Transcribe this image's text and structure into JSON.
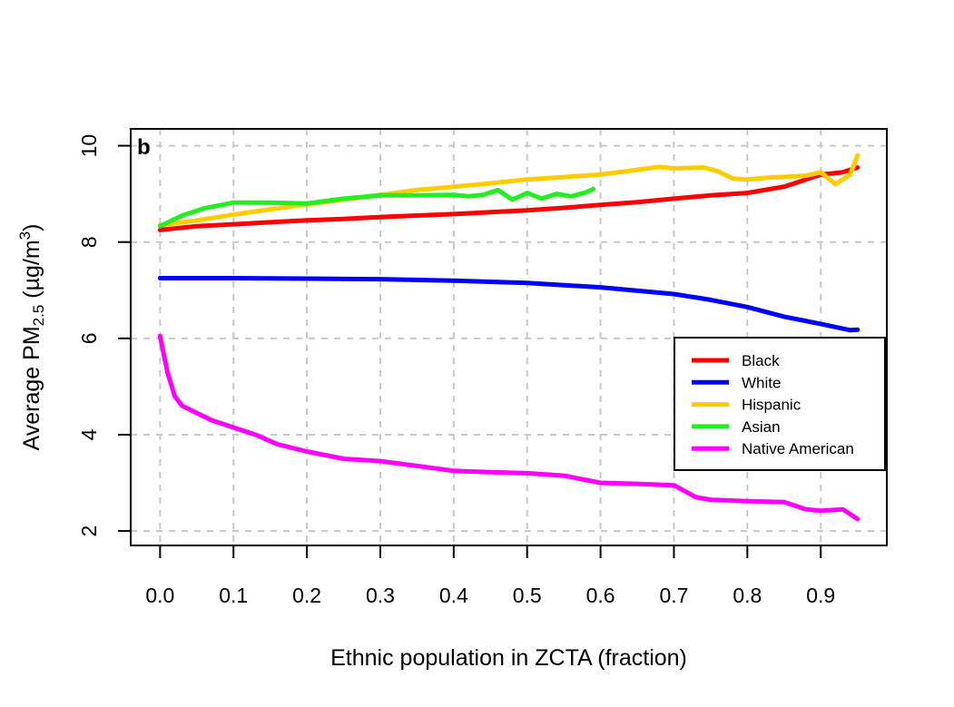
{
  "chart_data": {
    "type": "line",
    "panel_label": "b",
    "xlabel": "Ethnic population in ZCTA (fraction)",
    "ylabel": {
      "prefix": "Average PM",
      "subscript": "2.5",
      "unit_pre": " (µg/m",
      "superscript": "3",
      "unit_post": ")"
    },
    "xlim": [
      -0.04,
      0.99
    ],
    "ylim": [
      1.7,
      10.35
    ],
    "xticks": [
      0.0,
      0.1,
      0.2,
      0.3,
      0.4,
      0.5,
      0.6,
      0.7,
      0.8,
      0.9
    ],
    "xtick_labels": [
      "0.0",
      "0.1",
      "0.2",
      "0.3",
      "0.4",
      "0.5",
      "0.6",
      "0.7",
      "0.8",
      "0.9"
    ],
    "yticks": [
      2,
      4,
      6,
      8,
      10
    ],
    "ytick_labels": [
      "2",
      "4",
      "6",
      "8",
      "10"
    ],
    "grid": true,
    "legend_position": "right",
    "series": [
      {
        "name": "Black",
        "color": "#ff0000",
        "x": [
          0.0,
          0.05,
          0.1,
          0.15,
          0.2,
          0.25,
          0.3,
          0.35,
          0.4,
          0.45,
          0.5,
          0.55,
          0.6,
          0.65,
          0.7,
          0.75,
          0.8,
          0.85,
          0.9,
          0.93,
          0.95
        ],
        "y": [
          8.25,
          8.33,
          8.37,
          8.41,
          8.45,
          8.48,
          8.52,
          8.55,
          8.58,
          8.62,
          8.66,
          8.71,
          8.77,
          8.83,
          8.9,
          8.97,
          9.02,
          9.15,
          9.4,
          9.45,
          9.55
        ]
      },
      {
        "name": "White",
        "color": "#0000ff",
        "x": [
          0.0,
          0.1,
          0.2,
          0.3,
          0.4,
          0.5,
          0.6,
          0.7,
          0.75,
          0.8,
          0.85,
          0.9,
          0.94,
          0.95
        ],
        "y": [
          7.25,
          7.25,
          7.24,
          7.23,
          7.2,
          7.15,
          7.06,
          6.92,
          6.8,
          6.65,
          6.45,
          6.3,
          6.17,
          6.18
        ]
      },
      {
        "name": "Hispanic",
        "color": "#ffcc00",
        "x": [
          0.0,
          0.05,
          0.1,
          0.15,
          0.2,
          0.25,
          0.3,
          0.35,
          0.4,
          0.45,
          0.5,
          0.55,
          0.6,
          0.65,
          0.68,
          0.7,
          0.74,
          0.76,
          0.78,
          0.8,
          0.83,
          0.86,
          0.88,
          0.9,
          0.92,
          0.94,
          0.95
        ],
        "y": [
          8.35,
          8.45,
          8.57,
          8.68,
          8.78,
          8.88,
          8.98,
          9.08,
          9.15,
          9.22,
          9.3,
          9.35,
          9.4,
          9.5,
          9.56,
          9.53,
          9.55,
          9.47,
          9.32,
          9.3,
          9.34,
          9.36,
          9.38,
          9.45,
          9.2,
          9.4,
          9.8
        ]
      },
      {
        "name": "Asian",
        "color": "#22ee22",
        "x": [
          0.0,
          0.03,
          0.06,
          0.1,
          0.15,
          0.2,
          0.25,
          0.3,
          0.35,
          0.4,
          0.42,
          0.44,
          0.46,
          0.48,
          0.5,
          0.52,
          0.54,
          0.56,
          0.58,
          0.59
        ],
        "y": [
          8.33,
          8.55,
          8.7,
          8.82,
          8.82,
          8.8,
          8.9,
          8.97,
          8.97,
          8.98,
          8.95,
          8.98,
          9.08,
          8.88,
          9.02,
          8.9,
          9.0,
          8.95,
          9.03,
          9.1
        ]
      },
      {
        "name": "Native American",
        "color": "#ff00ff",
        "x": [
          0.0,
          0.01,
          0.02,
          0.03,
          0.05,
          0.07,
          0.1,
          0.13,
          0.16,
          0.2,
          0.25,
          0.3,
          0.35,
          0.4,
          0.45,
          0.5,
          0.55,
          0.6,
          0.65,
          0.7,
          0.73,
          0.75,
          0.8,
          0.85,
          0.88,
          0.9,
          0.93,
          0.95
        ],
        "y": [
          6.05,
          5.3,
          4.8,
          4.6,
          4.45,
          4.3,
          4.15,
          4.0,
          3.8,
          3.65,
          3.5,
          3.45,
          3.35,
          3.25,
          3.22,
          3.2,
          3.15,
          3.0,
          2.98,
          2.95,
          2.7,
          2.65,
          2.62,
          2.6,
          2.45,
          2.42,
          2.45,
          2.25
        ]
      }
    ]
  }
}
